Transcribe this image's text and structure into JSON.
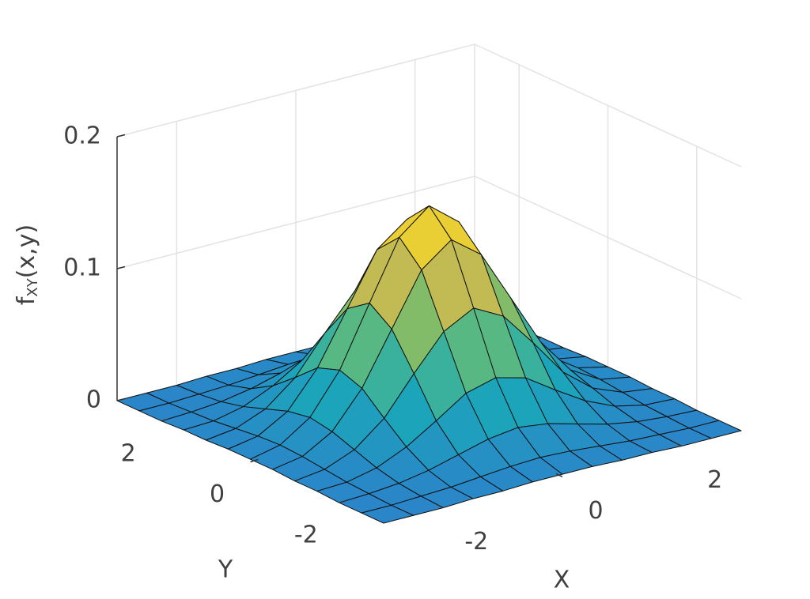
{
  "chart_data": {
    "type": "surface",
    "xlabel": "X",
    "ylabel": "Y",
    "zlabel": {
      "base": "f",
      "sub": "XY",
      "rest": "(x,y)"
    },
    "x": [
      -3,
      -2.5,
      -2,
      -1.5,
      -1,
      -0.5,
      0,
      0.5,
      1,
      1.5,
      2,
      2.5,
      3
    ],
    "y": [
      -3,
      -2.5,
      -2,
      -1.5,
      -1,
      -0.5,
      0,
      0.5,
      1,
      1.5,
      2,
      2.5,
      3
    ],
    "z": [
      [
        0,
        0,
        0,
        0.001,
        0.001,
        0.002,
        0.002,
        0.002,
        0.001,
        0.001,
        0,
        0,
        0
      ],
      [
        0,
        0,
        0.001,
        0.002,
        0.004,
        0.006,
        0.007,
        0.006,
        0.004,
        0.002,
        0.001,
        0,
        0
      ],
      [
        0,
        0.001,
        0.003,
        0.007,
        0.013,
        0.019,
        0.022,
        0.019,
        0.013,
        0.007,
        0.003,
        0.001,
        0
      ],
      [
        0.001,
        0.002,
        0.007,
        0.017,
        0.031,
        0.046,
        0.052,
        0.046,
        0.031,
        0.017,
        0.007,
        0.002,
        0.001
      ],
      [
        0.001,
        0.004,
        0.013,
        0.031,
        0.059,
        0.085,
        0.097,
        0.085,
        0.059,
        0.031,
        0.013,
        0.004,
        0.001
      ],
      [
        0.002,
        0.006,
        0.019,
        0.046,
        0.085,
        0.124,
        0.141,
        0.124,
        0.085,
        0.046,
        0.019,
        0.006,
        0.002
      ],
      [
        0.002,
        0.007,
        0.022,
        0.052,
        0.097,
        0.141,
        0.159,
        0.141,
        0.097,
        0.052,
        0.022,
        0.007,
        0.002
      ],
      [
        0.002,
        0.006,
        0.019,
        0.046,
        0.085,
        0.124,
        0.141,
        0.124,
        0.085,
        0.046,
        0.019,
        0.006,
        0.002
      ],
      [
        0.001,
        0.004,
        0.013,
        0.031,
        0.059,
        0.085,
        0.097,
        0.085,
        0.059,
        0.031,
        0.013,
        0.004,
        0.001
      ],
      [
        0.001,
        0.002,
        0.007,
        0.017,
        0.031,
        0.046,
        0.052,
        0.046,
        0.031,
        0.017,
        0.007,
        0.002,
        0.001
      ],
      [
        0,
        0.001,
        0.003,
        0.007,
        0.013,
        0.019,
        0.022,
        0.019,
        0.013,
        0.007,
        0.003,
        0.001,
        0
      ],
      [
        0,
        0,
        0.001,
        0.002,
        0.004,
        0.006,
        0.007,
        0.006,
        0.004,
        0.002,
        0.001,
        0,
        0
      ],
      [
        0,
        0,
        0,
        0.001,
        0.001,
        0.002,
        0.002,
        0.002,
        0.001,
        0.001,
        0,
        0,
        0
      ]
    ],
    "xlim": [
      -3,
      3
    ],
    "ylim": [
      -3,
      3
    ],
    "zlim": [
      0,
      0.2
    ],
    "xticks": [
      -2,
      0,
      2
    ],
    "yticks": [
      -2,
      0,
      2
    ],
    "zticks": [
      0,
      0.1,
      0.2
    ],
    "grid": true,
    "colormap": [
      "#2a86c8",
      "#1aa9b8",
      "#6cbd72",
      "#d6b94a",
      "#f9e021"
    ],
    "edge_color": "#111111"
  }
}
